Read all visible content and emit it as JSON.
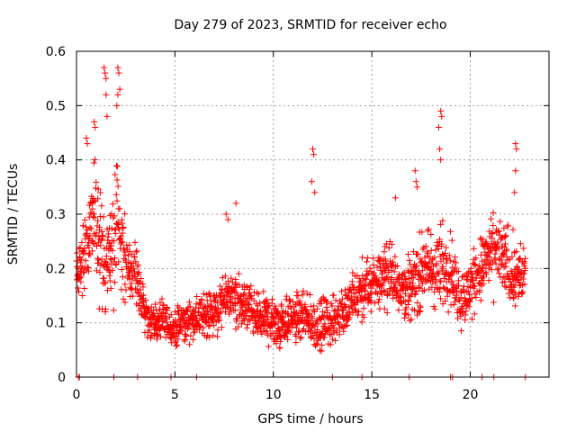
{
  "chart_data": {
    "type": "scatter",
    "title": "Day 279 of 2023, SRMTID for receiver echo",
    "xlabel": "GPS time / hours",
    "ylabel": "SRMTID / TECUs",
    "xlim": [
      0,
      24
    ],
    "ylim": [
      0,
      0.6
    ],
    "xticks": [
      0,
      5,
      10,
      15,
      20
    ],
    "yticks": [
      0,
      0.1,
      0.2,
      0.3,
      0.4,
      0.5,
      0.6
    ],
    "ytick_labels": [
      "0",
      "0.1",
      "0.2",
      "0.3",
      "0.4",
      "0.5",
      "0.6"
    ],
    "grid": true,
    "marker": "plus",
    "series": [
      {
        "name": "SRMTID",
        "color": "#ff0000",
        "envelope": {
          "hours": [
            0.0,
            0.3,
            0.6,
            0.9,
            1.2,
            1.5,
            1.8,
            2.1,
            2.4,
            2.7,
            3.0,
            3.3,
            3.6,
            3.9,
            4.2,
            4.5,
            4.8,
            5.1,
            5.4,
            5.7,
            6.0,
            6.3,
            6.6,
            6.9,
            7.2,
            7.5,
            7.8,
            8.1,
            8.4,
            8.7,
            9.0,
            9.3,
            9.6,
            9.9,
            10.2,
            10.5,
            10.8,
            11.1,
            11.4,
            11.7,
            12.0,
            12.3,
            12.6,
            12.9,
            13.2,
            13.5,
            13.8,
            14.1,
            14.4,
            14.7,
            15.0,
            15.3,
            15.6,
            15.9,
            16.2,
            16.5,
            16.8,
            17.1,
            17.4,
            17.7,
            18.0,
            18.3,
            18.6,
            18.9,
            19.2,
            19.5,
            19.8,
            20.1,
            20.4,
            20.7,
            21.0,
            21.3,
            21.6,
            21.9,
            22.2,
            22.5,
            22.8
          ],
          "center": [
            0.19,
            0.22,
            0.26,
            0.3,
            0.25,
            0.2,
            0.24,
            0.3,
            0.22,
            0.18,
            0.2,
            0.14,
            0.11,
            0.1,
            0.1,
            0.1,
            0.09,
            0.09,
            0.1,
            0.1,
            0.11,
            0.11,
            0.12,
            0.12,
            0.12,
            0.14,
            0.15,
            0.14,
            0.13,
            0.13,
            0.11,
            0.11,
            0.11,
            0.1,
            0.1,
            0.1,
            0.11,
            0.11,
            0.11,
            0.1,
            0.1,
            0.09,
            0.1,
            0.1,
            0.11,
            0.12,
            0.13,
            0.14,
            0.15,
            0.16,
            0.17,
            0.18,
            0.19,
            0.19,
            0.18,
            0.17,
            0.16,
            0.17,
            0.19,
            0.2,
            0.2,
            0.19,
            0.2,
            0.21,
            0.18,
            0.14,
            0.15,
            0.17,
            0.19,
            0.21,
            0.22,
            0.23,
            0.22,
            0.21,
            0.19,
            0.18,
            0.2
          ],
          "spread": [
            0.05,
            0.06,
            0.07,
            0.08,
            0.09,
            0.08,
            0.09,
            0.1,
            0.08,
            0.06,
            0.06,
            0.04,
            0.03,
            0.03,
            0.03,
            0.03,
            0.03,
            0.03,
            0.03,
            0.03,
            0.03,
            0.03,
            0.04,
            0.04,
            0.04,
            0.04,
            0.04,
            0.04,
            0.04,
            0.04,
            0.04,
            0.04,
            0.04,
            0.04,
            0.04,
            0.04,
            0.04,
            0.04,
            0.04,
            0.04,
            0.04,
            0.04,
            0.04,
            0.04,
            0.04,
            0.04,
            0.04,
            0.05,
            0.05,
            0.05,
            0.05,
            0.05,
            0.05,
            0.05,
            0.05,
            0.05,
            0.05,
            0.05,
            0.06,
            0.06,
            0.07,
            0.07,
            0.07,
            0.07,
            0.06,
            0.05,
            0.05,
            0.05,
            0.05,
            0.06,
            0.06,
            0.06,
            0.06,
            0.06,
            0.06,
            0.05,
            0.05
          ]
        },
        "spikes": [
          [
            1.4,
            0.57
          ],
          [
            1.45,
            0.56
          ],
          [
            1.5,
            0.55
          ],
          [
            1.5,
            0.52
          ],
          [
            1.55,
            0.48
          ],
          [
            2.1,
            0.57
          ],
          [
            2.15,
            0.56
          ],
          [
            2.2,
            0.53
          ],
          [
            2.1,
            0.52
          ],
          [
            2.05,
            0.5
          ],
          [
            0.9,
            0.47
          ],
          [
            0.95,
            0.46
          ],
          [
            0.5,
            0.44
          ],
          [
            0.55,
            0.43
          ],
          [
            12.0,
            0.42
          ],
          [
            12.05,
            0.41
          ],
          [
            11.95,
            0.36
          ],
          [
            12.1,
            0.34
          ],
          [
            18.5,
            0.49
          ],
          [
            18.55,
            0.48
          ],
          [
            18.4,
            0.46
          ],
          [
            18.45,
            0.42
          ],
          [
            18.5,
            0.4
          ],
          [
            22.3,
            0.43
          ],
          [
            22.35,
            0.42
          ],
          [
            22.3,
            0.38
          ],
          [
            22.25,
            0.34
          ],
          [
            17.2,
            0.38
          ],
          [
            17.25,
            0.36
          ],
          [
            17.3,
            0.35
          ],
          [
            7.6,
            0.3
          ],
          [
            7.7,
            0.29
          ],
          [
            8.1,
            0.32
          ],
          [
            16.2,
            0.33
          ]
        ],
        "zeros": [
          0.1,
          0.15,
          1.9,
          3.1,
          4.8,
          6.1,
          13.0,
          14.5,
          16.9,
          19.0,
          19.1,
          20.6,
          21.2,
          22.8
        ]
      }
    ]
  }
}
